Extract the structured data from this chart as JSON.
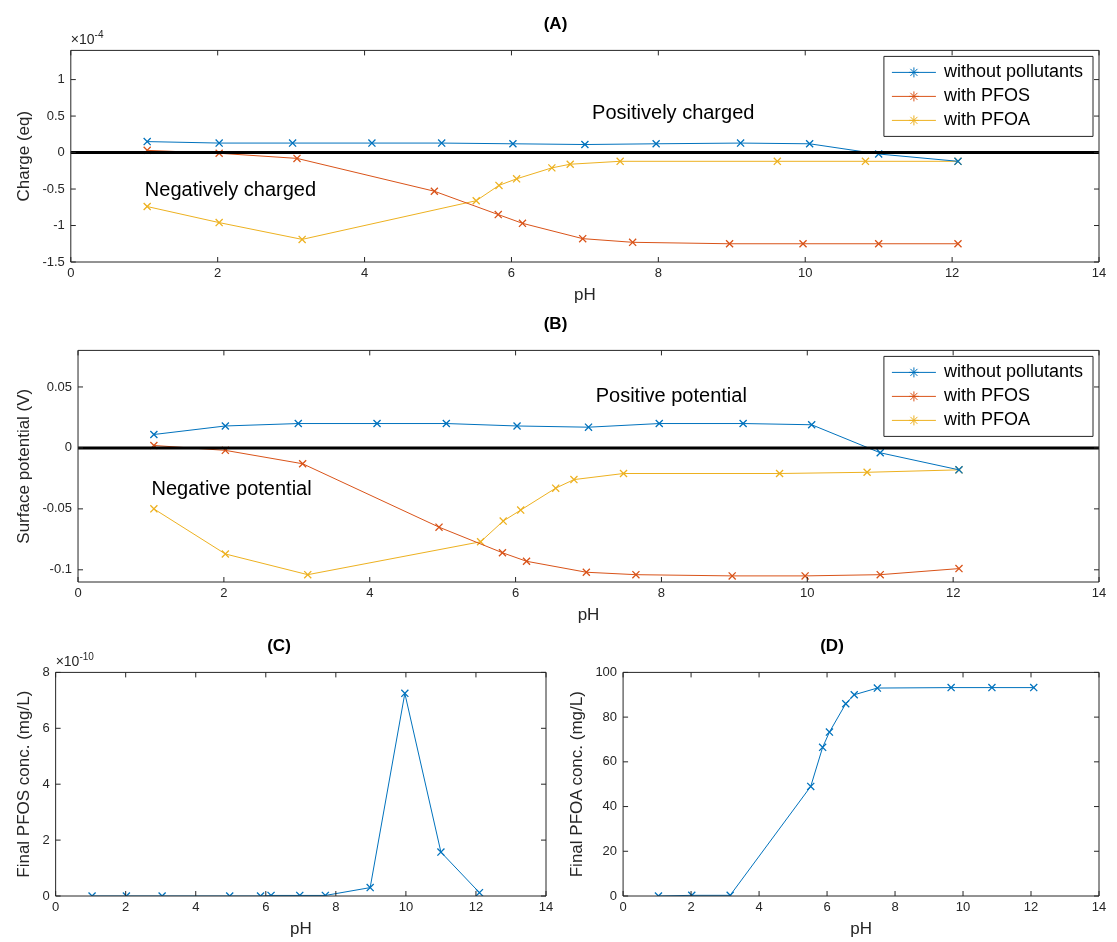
{
  "chart_data": [
    {
      "type": "line",
      "title": "(A)",
      "xlabel": "pH",
      "ylabel": "Charge (eq)",
      "xlim": [
        0,
        14
      ],
      "xticks": [
        0,
        2,
        4,
        6,
        8,
        10,
        12,
        14
      ],
      "ylim": [
        -1.5,
        1.4
      ],
      "yticks": [
        -1.5,
        -1,
        -0.5,
        0,
        0.5,
        1
      ],
      "grid": false,
      "legend": "top right",
      "marker": "cross",
      "line_style": "solid",
      "series": [
        {
          "name": "without pollutants",
          "color": "#0072bd",
          "x": [
            1.04,
            2.02,
            3.02,
            4.1,
            5.05,
            6.02,
            7.0,
            7.97,
            9.12,
            10.06,
            11.0,
            12.08
          ],
          "values": [
            0.15,
            0.13,
            0.13,
            0.13,
            0.13,
            0.12,
            0.11,
            0.12,
            0.13,
            0.12,
            -0.02,
            -0.12
          ]
        },
        {
          "name": "with PFOS",
          "color": "#d95319",
          "x": [
            1.04,
            2.02,
            3.08,
            4.95,
            5.82,
            6.15,
            6.97,
            7.65,
            8.97,
            9.97,
            11.0,
            12.08
          ],
          "values": [
            0.03,
            -0.01,
            -0.08,
            -0.53,
            -0.85,
            -0.97,
            -1.18,
            -1.23,
            -1.25,
            -1.25,
            -1.25,
            -1.25
          ]
        },
        {
          "name": "with PFOA",
          "color": "#edb120",
          "x": [
            1.04,
            2.02,
            3.15,
            5.52,
            5.83,
            6.07,
            6.55,
            6.8,
            7.48,
            9.62,
            10.82,
            12.08
          ],
          "values": [
            -0.74,
            -0.96,
            -1.19,
            -0.66,
            -0.45,
            -0.36,
            -0.21,
            -0.16,
            -0.12,
            -0.12,
            -0.12,
            -0.12
          ]
        }
      ],
      "ref_lines": [
        {
          "axis": "y",
          "value": 0,
          "color": "#000000"
        }
      ],
      "annotations": [
        "×10$^{-4}$",
        "Positively charged",
        "Negatively charged"
      ]
    },
    {
      "type": "line",
      "title": "(B)",
      "xlabel": "pH",
      "ylabel": "Surface potential (V)",
      "xlim": [
        0,
        14
      ],
      "xticks": [
        0,
        2,
        4,
        6,
        8,
        10,
        12,
        14
      ],
      "ylim": [
        -0.11,
        0.08
      ],
      "yticks": [
        -0.1,
        -0.05,
        0,
        0.05
      ],
      "grid": false,
      "legend": "top right",
      "marker": "cross",
      "line_style": "solid",
      "series": [
        {
          "name": "without pollutants",
          "color": "#0072bd",
          "x": [
            1.04,
            2.02,
            3.02,
            4.1,
            5.05,
            6.02,
            7.0,
            7.97,
            9.12,
            10.06,
            11.0,
            12.08
          ],
          "values": [
            0.011,
            0.018,
            0.02,
            0.02,
            0.02,
            0.018,
            0.017,
            0.02,
            0.02,
            0.019,
            -0.004,
            -0.018
          ]
        },
        {
          "name": "with PFOS",
          "color": "#d95319",
          "x": [
            1.04,
            2.02,
            3.08,
            4.95,
            5.82,
            6.15,
            6.97,
            7.65,
            8.97,
            9.97,
            11.0,
            12.08
          ],
          "values": [
            0.002,
            -0.002,
            -0.013,
            -0.065,
            -0.086,
            -0.093,
            -0.102,
            -0.104,
            -0.105,
            -0.105,
            -0.104,
            -0.099
          ]
        },
        {
          "name": "with PFOA",
          "color": "#edb120",
          "x": [
            1.04,
            2.02,
            3.15,
            5.52,
            5.83,
            6.07,
            6.55,
            6.8,
            7.48,
            9.62,
            10.82,
            12.08
          ],
          "values": [
            -0.05,
            -0.087,
            -0.104,
            -0.077,
            -0.06,
            -0.051,
            -0.033,
            -0.026,
            -0.021,
            -0.021,
            -0.02,
            -0.018
          ]
        }
      ],
      "ref_lines": [
        {
          "axis": "y",
          "value": 0,
          "color": "#000000"
        }
      ],
      "annotations": [
        "Positive potential",
        "Negative potential"
      ]
    },
    {
      "type": "line",
      "title": "(C)",
      "xlabel": "pH",
      "ylabel": "Final PFOS conc. (mg/L)",
      "xlim": [
        0,
        14
      ],
      "xticks": [
        0,
        2,
        4,
        6,
        8,
        10,
        12,
        14
      ],
      "ylim": [
        0,
        8
      ],
      "yticks": [
        0,
        2,
        4,
        6,
        8
      ],
      "grid": false,
      "marker": "cross",
      "line_style": "solid",
      "series": [
        {
          "color": "#0072bd",
          "x": [
            1.04,
            2.02,
            3.04,
            4.97,
            5.85,
            6.15,
            6.97,
            7.7,
            8.98,
            9.97,
            11.0,
            12.1
          ],
          "values": [
            0,
            0,
            0,
            0,
            0,
            0.02,
            0.02,
            0.02,
            0.3,
            7.25,
            1.57,
            0.12
          ]
        }
      ],
      "annotations": [
        "×10$^{-10}$"
      ]
    },
    {
      "type": "line",
      "title": "(D)",
      "xlabel": "pH",
      "ylabel": "Final PFOA conc. (mg/L)",
      "xlim": [
        0,
        14
      ],
      "xticks": [
        0,
        2,
        4,
        6,
        8,
        10,
        12,
        14
      ],
      "ylim": [
        0,
        100
      ],
      "yticks": [
        0,
        20,
        40,
        60,
        80,
        100
      ],
      "grid": false,
      "marker": "cross",
      "line_style": "solid",
      "series": [
        {
          "color": "#0072bd",
          "x": [
            1.04,
            2.02,
            3.15,
            5.52,
            5.87,
            6.07,
            6.55,
            6.8,
            7.48,
            9.65,
            10.85,
            12.08
          ],
          "values": [
            0,
            0.3,
            0.3,
            49,
            66.5,
            73.3,
            86,
            90,
            93,
            93.2,
            93.2,
            93.2
          ]
        }
      ]
    }
  ]
}
